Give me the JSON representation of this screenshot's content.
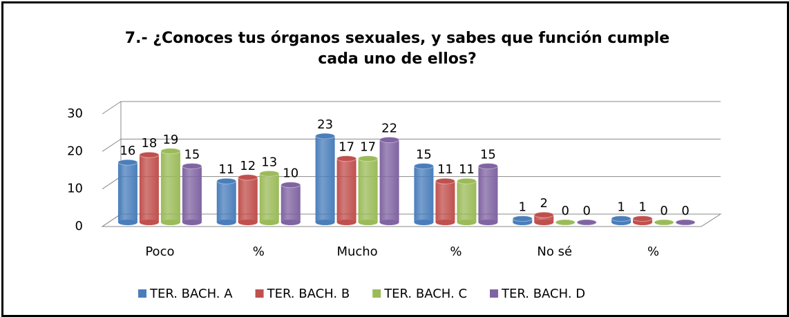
{
  "chart_data": {
    "type": "bar3d",
    "title": "7.- ¿Conoces tus órganos sexuales, y sabes que función cumple cada uno de ellos?",
    "categories": [
      "Poco",
      "%",
      "Mucho",
      "%",
      "No sé",
      "%"
    ],
    "series": [
      {
        "name": "TER. BACH. A",
        "color": "#4a7ebb",
        "values": [
          16,
          11,
          23,
          15,
          1,
          1
        ]
      },
      {
        "name": "TER. BACH. B",
        "color": "#c0504d",
        "values": [
          18,
          12,
          17,
          11,
          2,
          1
        ]
      },
      {
        "name": "TER. BACH. C",
        "color": "#9bbb59",
        "values": [
          19,
          13,
          17,
          11,
          0,
          0
        ]
      },
      {
        "name": "TER. BACH. D",
        "color": "#8064a2",
        "values": [
          15,
          10,
          22,
          15,
          0,
          0
        ]
      }
    ],
    "ylim": [
      0,
      30
    ],
    "yticks": [
      0,
      10,
      20,
      30
    ],
    "grid": true,
    "legend": "bottom"
  }
}
